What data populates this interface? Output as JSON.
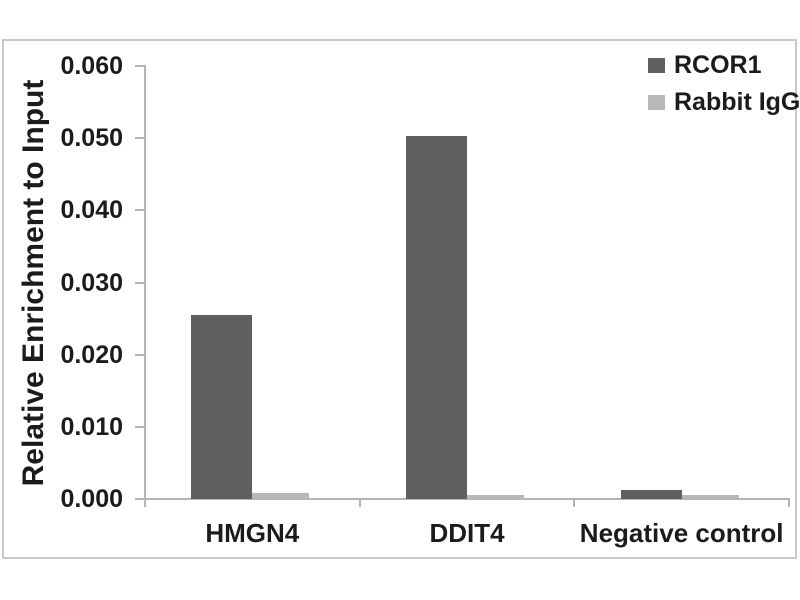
{
  "chart_data": {
    "type": "bar",
    "title": "",
    "xlabel": "",
    "ylabel": "Relative Enrichment to Input",
    "categories": [
      "HMGN4",
      "DDIT4",
      "Negative control"
    ],
    "series": [
      {
        "name": "RCOR1",
        "color": "#5f5f5f",
        "values": [
          0.0255,
          0.0503,
          0.0013
        ]
      },
      {
        "name": "Rabbit IgG",
        "color": "#b8b8b8",
        "values": [
          0.0008,
          0.0006,
          0.0005
        ]
      }
    ],
    "ylim": [
      0,
      0.06
    ],
    "ytick_step": 0.01,
    "ytick_decimals": 3,
    "grid": false,
    "legend_position": "top-right",
    "axis_color": "#b4b4b4",
    "frame_color": "#c9c9c9",
    "text_color": "#1b1b1b",
    "background_color": "#ffffff"
  }
}
